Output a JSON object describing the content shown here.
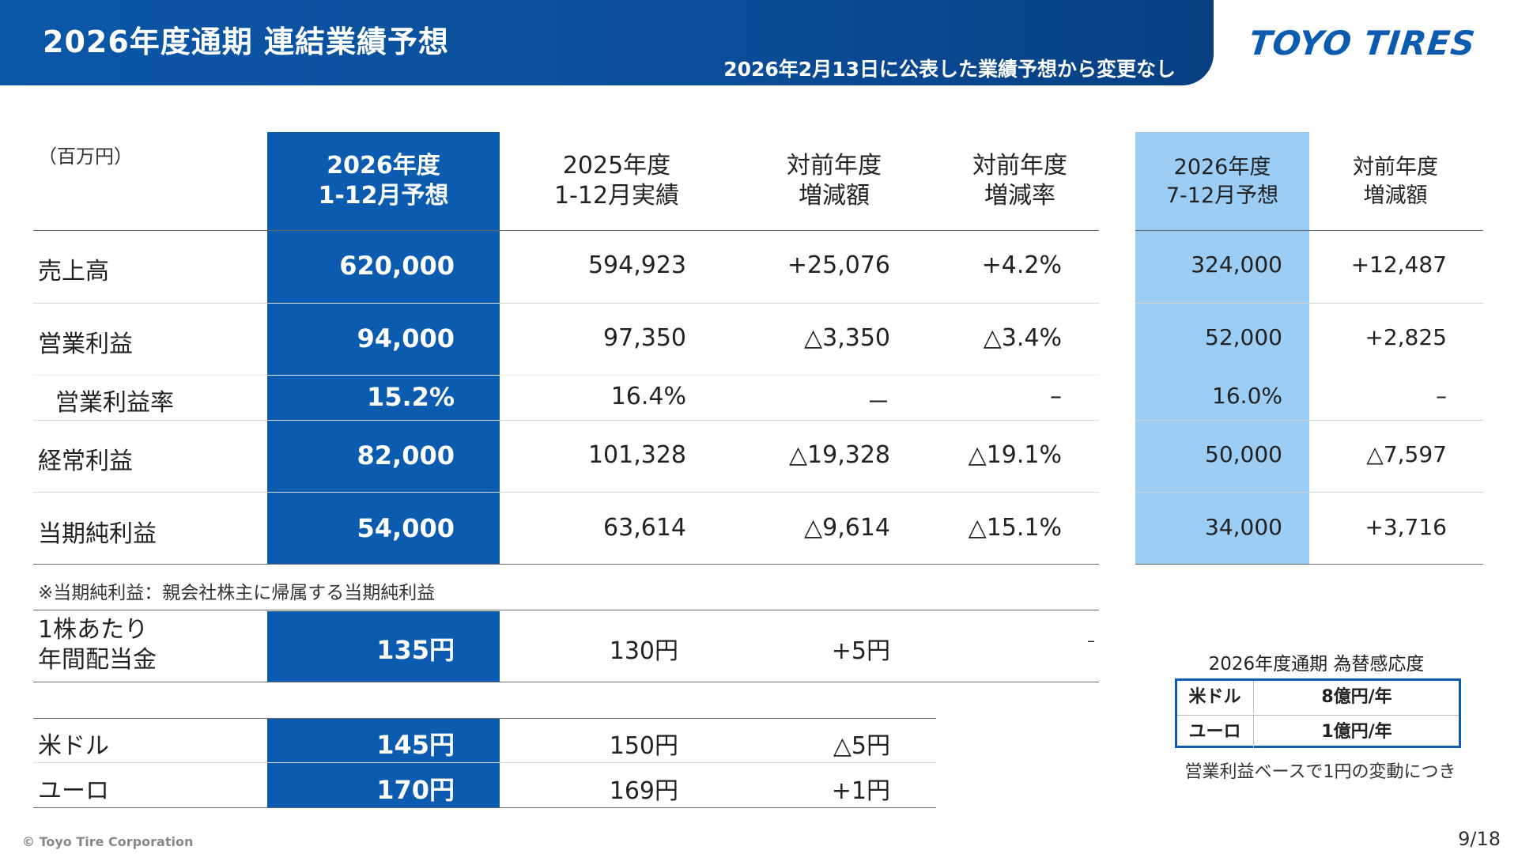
{
  "header": {
    "title": "2026年度通期 連結業績予想",
    "subtitle": "2026年2月13日に公表した業績予想から変更なし",
    "logo": "TOYO TIRES"
  },
  "table": {
    "unit": "（百万円）",
    "columns": [
      {
        "line1": "2026年度",
        "line2": "1-12月予想"
      },
      {
        "line1": "2025年度",
        "line2": "1-12月実績"
      },
      {
        "line1": "対前年度",
        "line2": "増減額"
      },
      {
        "line1": "対前年度",
        "line2": "増減率"
      },
      {
        "line1": "2026年度",
        "line2": "7-12月予想"
      },
      {
        "line1": "対前年度",
        "line2": "増減額"
      }
    ],
    "rows": [
      {
        "label": "売上高",
        "values": [
          "620,000",
          "594,923",
          "+25,076",
          "+4.2%",
          "324,000",
          "+12,487"
        ]
      },
      {
        "label": "営業利益",
        "values": [
          "94,000",
          "97,350",
          "△3,350",
          "△3.4%",
          "52,000",
          "+2,825"
        ]
      },
      {
        "label": "営業利益率",
        "values": [
          "15.2%",
          "16.4%",
          "－",
          "–",
          "16.0%",
          "–"
        ]
      },
      {
        "label": "経常利益",
        "values": [
          "82,000",
          "101,328",
          "△19,328",
          "△19.1%",
          "50,000",
          "△7,597"
        ]
      },
      {
        "label": "当期純利益",
        "values": [
          "54,000",
          "63,614",
          "△9,614",
          "△15.1%",
          "34,000",
          "+3,716"
        ]
      }
    ],
    "note": "※当期純利益：親会社株主に帰属する当期純利益"
  },
  "dividend": {
    "label_line1": "1株あたり",
    "label_line2": "年間配当金",
    "values": [
      "135円",
      "130円",
      "+5円",
      "–"
    ]
  },
  "fx_rates": [
    {
      "label": "米ドル",
      "values": [
        "145円",
        "150円",
        "△5円"
      ]
    },
    {
      "label": "ユーロ",
      "values": [
        "170円",
        "169円",
        "+1円"
      ]
    }
  ],
  "sensitivity": {
    "title": "2026年度通期 為替感応度",
    "rows": [
      {
        "currency": "米ドル",
        "value": "8億円/年"
      },
      {
        "currency": "ユーロ",
        "value": "1億円/年"
      }
    ],
    "note": "営業利益ベースで1円の変動につき"
  },
  "footer": {
    "copyright": "© Toyo Tire Corporation",
    "page": "9/18"
  },
  "colors": {
    "header_blue": "#0b57a8",
    "main_column": "#0b5cb0",
    "light_column": "#9bcdf5"
  }
}
